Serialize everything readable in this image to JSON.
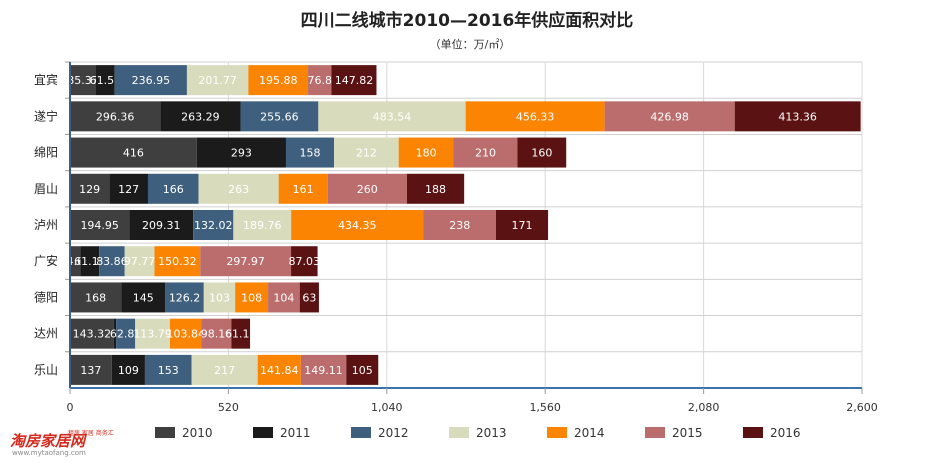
{
  "chart_data": {
    "type": "bar",
    "orientation": "horizontal",
    "stacked": true,
    "title": "四川二线城市2010—2016年供应面积对比",
    "subtitle": "（单位：万/㎡）",
    "categories": [
      "宜宾",
      "遂宁",
      "绵阳",
      "眉山",
      "泸州",
      "广安",
      "德阳",
      "达州",
      "乐山"
    ],
    "series": [
      {
        "name": "2010",
        "color": "#3f3f3f",
        "values": [
          85.37,
          296.36,
          416,
          129,
          194.95,
          34.64,
          168,
          143.32,
          137
        ]
      },
      {
        "name": "2011",
        "color": "#1b1b1b",
        "values": [
          61.53,
          263.29,
          293,
          127,
          209.31,
          61.13,
          145,
          8.0,
          109
        ]
      },
      {
        "name": "2012",
        "color": "#3e5f7d",
        "values": [
          236.95,
          255.66,
          158,
          166,
          132.02,
          83.86,
          126.2,
          62.86,
          153
        ]
      },
      {
        "name": "2013",
        "color": "#d9dcbc",
        "values": [
          201.77,
          483.54,
          212,
          263,
          189.76,
          97.77,
          103,
          113.79,
          217
        ]
      },
      {
        "name": "2014",
        "color": "#fb8403",
        "values": [
          195.88,
          456.33,
          180,
          161,
          434.35,
          150.32,
          108,
          103.84,
          141.84
        ]
      },
      {
        "name": "2015",
        "color": "#bb6d6d",
        "values": [
          76.8,
          426.98,
          210,
          260,
          238,
          297.97,
          104,
          98.16,
          149.11
        ]
      },
      {
        "name": "2016",
        "color": "#5b1212",
        "values": [
          147.82,
          413.36,
          160,
          188,
          171,
          87.03,
          63,
          61.12,
          105
        ]
      }
    ],
    "labels": [
      [
        "85.37",
        "61.53",
        "236.95",
        "201.77",
        "195.88",
        "76.8",
        "147.82"
      ],
      [
        "296.36",
        "263.29",
        "255.66",
        "483.54",
        "456.33",
        "426.98",
        "413.36"
      ],
      [
        "416",
        "293",
        "158",
        "212",
        "180",
        "210",
        "160"
      ],
      [
        "129",
        "127",
        "166",
        "263",
        "161",
        "260",
        "188"
      ],
      [
        "194.95",
        "209.31",
        "132.02",
        "189.76",
        "434.35",
        "238",
        "171"
      ],
      [
        "34.64",
        "61.13",
        "83.86",
        "97.77",
        "150.32",
        "297.97",
        "87.03"
      ],
      [
        "168",
        "145",
        "126.2",
        "103",
        "108",
        "104",
        "63"
      ],
      [
        "143.32",
        "",
        "62.86",
        "113.79",
        "103.84",
        "98.16",
        "61.12"
      ],
      [
        "137",
        "109",
        "153",
        "217",
        "141.84",
        "149.11",
        "105"
      ]
    ],
    "xlim": [
      0,
      2600
    ],
    "xticks": [
      "0",
      "520",
      "1,040",
      "1,560",
      "2,080",
      "2,600"
    ],
    "xtick_values": [
      0,
      520,
      1040,
      1560,
      2080,
      2600
    ],
    "grid": true,
    "legend_position": "bottom"
  },
  "logo": {
    "main": "淘房家居网",
    "slogan": "租房 家居 商务汇",
    "url": "www.mytaofang.com"
  }
}
